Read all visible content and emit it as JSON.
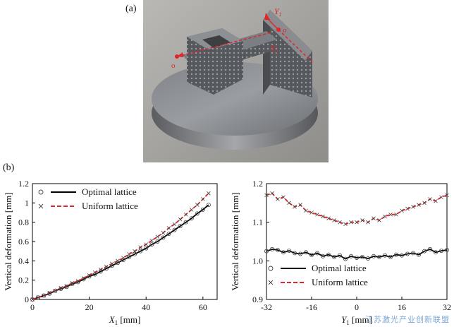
{
  "panel_a_label": "(a)",
  "panel_b_label": "(b)",
  "photo": {
    "label_y": "Y",
    "label_y_sub": "1",
    "label_x": "X",
    "label_x_sub": "1",
    "label_o1": "o",
    "label_o2": "o",
    "annotation_color": "#e0262a"
  },
  "watermark": "江苏激光产业创新联盟",
  "chart_data": [
    {
      "type": "scatter",
      "title": "",
      "xlabel": "X",
      "xlabel_sub": "1",
      "xlabel_unit": " [mm]",
      "ylabel": "Vertical deformation [mm]",
      "xlim": [
        0,
        65
      ],
      "ylim": [
        0,
        1.2
      ],
      "xticks": [
        "0",
        "20",
        "40",
        "60"
      ],
      "yticks": [
        "0",
        "0.2",
        "0.4",
        "0.6",
        "0.8",
        "1",
        "1.2"
      ],
      "legend_position": "top-left",
      "grid": false,
      "series": [
        {
          "name": "Optimal lattice",
          "marker": "circle",
          "line": "solid",
          "color": "#000000",
          "x": [
            0,
            2,
            4,
            6,
            8,
            10,
            12,
            14,
            16,
            18,
            20,
            22,
            24,
            26,
            28,
            30,
            32,
            34,
            36,
            38,
            40,
            42,
            44,
            46,
            48,
            50,
            52,
            54,
            56,
            58,
            60,
            62
          ],
          "y": [
            0,
            0.02,
            0.04,
            0.06,
            0.09,
            0.11,
            0.13,
            0.16,
            0.18,
            0.21,
            0.24,
            0.26,
            0.29,
            0.32,
            0.35,
            0.38,
            0.41,
            0.44,
            0.47,
            0.5,
            0.53,
            0.57,
            0.6,
            0.64,
            0.68,
            0.72,
            0.76,
            0.8,
            0.84,
            0.89,
            0.93,
            0.98
          ]
        },
        {
          "name": "Uniform lattice",
          "marker": "cross",
          "line": "dashed",
          "color": "#e0262a",
          "x": [
            0,
            2,
            4,
            6,
            8,
            10,
            12,
            14,
            16,
            18,
            20,
            22,
            24,
            26,
            28,
            30,
            32,
            34,
            36,
            38,
            40,
            42,
            44,
            46,
            48,
            50,
            52,
            54,
            56,
            58,
            60,
            62
          ],
          "y": [
            0,
            0.02,
            0.04,
            0.07,
            0.09,
            0.12,
            0.14,
            0.17,
            0.19,
            0.22,
            0.25,
            0.28,
            0.31,
            0.34,
            0.37,
            0.4,
            0.43,
            0.47,
            0.5,
            0.54,
            0.57,
            0.61,
            0.65,
            0.69,
            0.74,
            0.78,
            0.83,
            0.88,
            0.93,
            0.98,
            1.04,
            1.1
          ]
        }
      ]
    },
    {
      "type": "scatter",
      "title": "",
      "xlabel": "Y",
      "xlabel_sub": "1",
      "xlabel_unit": " [mm]",
      "ylabel": "Vertical deformation [mm]",
      "xlim": [
        -32,
        32
      ],
      "ylim": [
        0.9,
        1.2
      ],
      "xticks": [
        "-32",
        "-16",
        "0",
        "16",
        "32"
      ],
      "yticks": [
        "0.9",
        "1.0",
        "1.1",
        "1.2"
      ],
      "legend_position": "bottom-left",
      "grid": false,
      "series": [
        {
          "name": "Optimal lattice",
          "marker": "circle",
          "line": "solid",
          "color": "#000000",
          "x": [
            -32,
            -30,
            -28,
            -26,
            -24,
            -22,
            -20,
            -18,
            -16,
            -14,
            -12,
            -10,
            -8,
            -6,
            -4,
            -2,
            0,
            2,
            4,
            6,
            8,
            10,
            12,
            14,
            16,
            18,
            20,
            22,
            24,
            26,
            28,
            30,
            32
          ],
          "y": [
            1.025,
            1.03,
            1.028,
            1.022,
            1.026,
            1.02,
            1.018,
            1.022,
            1.015,
            1.02,
            1.012,
            1.016,
            1.01,
            1.014,
            1.005,
            1.012,
            1.008,
            1.01,
            1.006,
            1.012,
            1.01,
            1.014,
            1.01,
            1.016,
            1.014,
            1.018,
            1.02,
            1.016,
            1.025,
            1.03,
            1.022,
            1.026,
            1.028
          ]
        },
        {
          "name": "Uniform lattice",
          "marker": "cross",
          "line": "dashed",
          "color": "#e0262a",
          "x": [
            -32,
            -30,
            -28,
            -26,
            -24,
            -22,
            -20,
            -18,
            -16,
            -14,
            -12,
            -10,
            -8,
            -6,
            -4,
            -2,
            0,
            2,
            4,
            6,
            8,
            10,
            12,
            14,
            16,
            18,
            20,
            22,
            24,
            26,
            28,
            30,
            32
          ],
          "y": [
            1.17,
            1.175,
            1.16,
            1.165,
            1.15,
            1.14,
            1.145,
            1.13,
            1.125,
            1.12,
            1.115,
            1.11,
            1.105,
            1.1,
            1.095,
            1.1,
            1.1,
            1.105,
            1.1,
            1.11,
            1.105,
            1.115,
            1.12,
            1.12,
            1.13,
            1.135,
            1.14,
            1.145,
            1.15,
            1.16,
            1.155,
            1.165,
            1.17
          ]
        }
      ]
    }
  ]
}
